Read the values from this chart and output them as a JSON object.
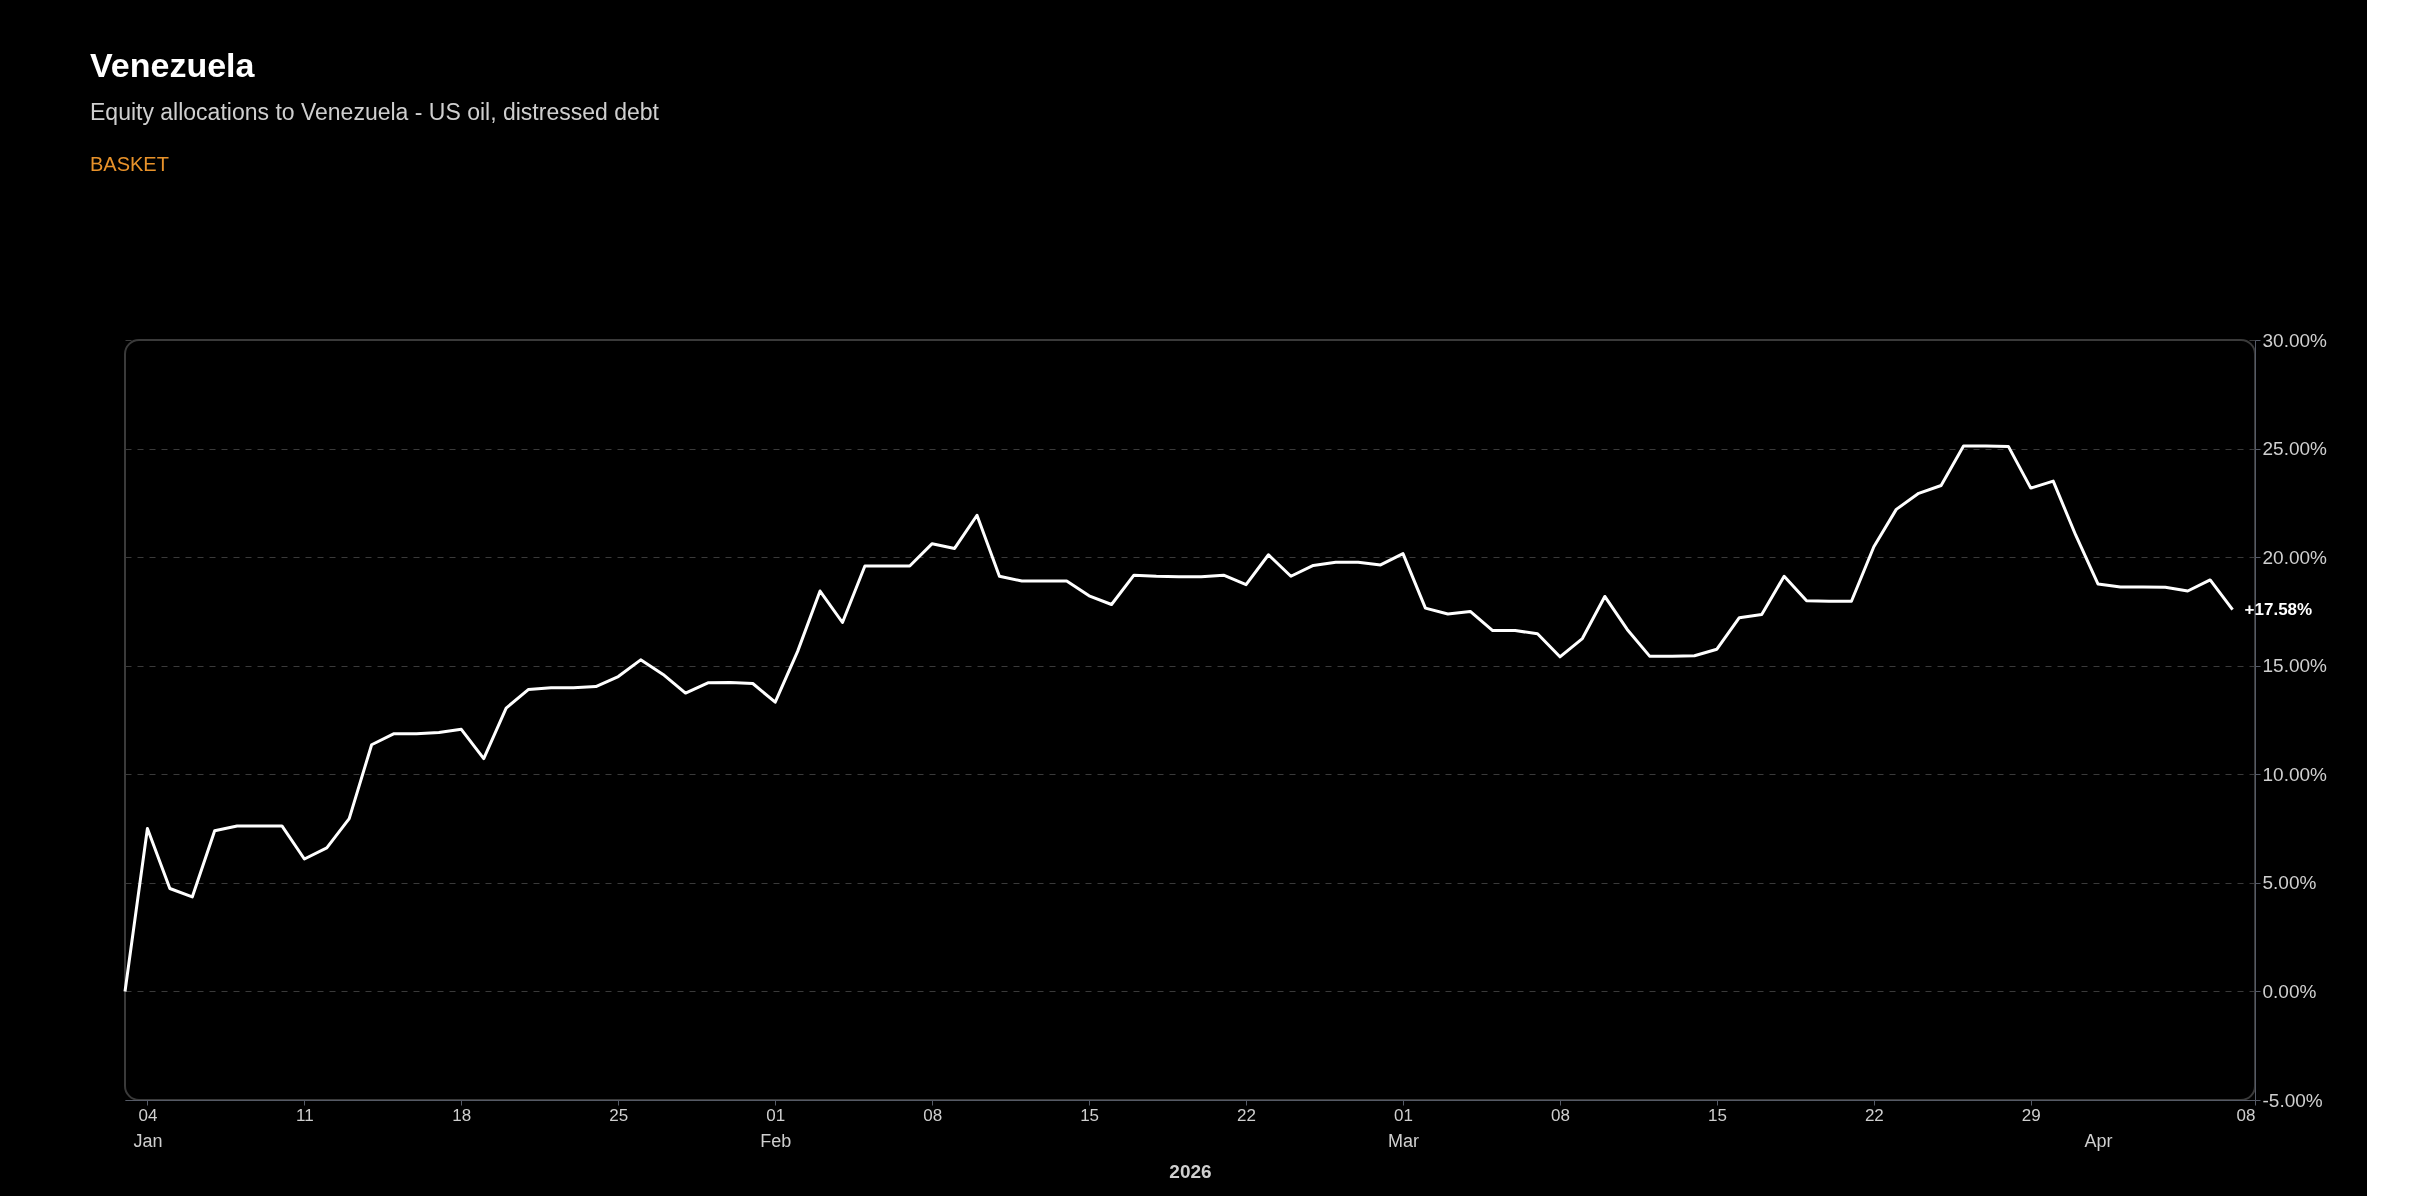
{
  "chart_data": {
    "type": "line",
    "title": "Venezuela",
    "subtitle": "Equity allocations to Venezuela - US oil, distressed debt",
    "xlabel": "2026",
    "annotations": [
      "BASKET",
      {
        "text": "+17.58%",
        "x": "2026-04-07",
        "y": 17.58
      }
    ],
    "x2lim": [
      "2026-01-03",
      "2026-04-08"
    ],
    "x2ticks": [
      {
        "value": "2026-01-04",
        "label": "Jan"
      },
      {
        "value": "2026-02-01",
        "label": "Feb"
      },
      {
        "value": "2026-03-01",
        "label": "Mar"
      },
      {
        "value": "2026-04-01",
        "label": "Apr"
      }
    ],
    "x": [
      "2026-01-03",
      "2026-01-04",
      "2026-01-05",
      "2026-01-06",
      "2026-01-07",
      "2026-01-08",
      "2026-01-09",
      "2026-01-10",
      "2026-01-11",
      "2026-01-12",
      "2026-01-13",
      "2026-01-14",
      "2026-01-15",
      "2026-01-16",
      "2026-01-17",
      "2026-01-18",
      "2026-01-19",
      "2026-01-20",
      "2026-01-21",
      "2026-01-22",
      "2026-01-23",
      "2026-01-24",
      "2026-01-25",
      "2026-01-26",
      "2026-01-27",
      "2026-01-28",
      "2026-01-29",
      "2026-01-30",
      "2026-01-31",
      "2026-02-01",
      "2026-02-02",
      "2026-02-03",
      "2026-02-04",
      "2026-02-05",
      "2026-02-06",
      "2026-02-07",
      "2026-02-08",
      "2026-02-09",
      "2026-02-10",
      "2026-02-11",
      "2026-02-12",
      "2026-02-13",
      "2026-02-14",
      "2026-02-15",
      "2026-02-16",
      "2026-02-17",
      "2026-02-18",
      "2026-02-19",
      "2026-02-20",
      "2026-02-21",
      "2026-02-22",
      "2026-02-23",
      "2026-02-24",
      "2026-02-25",
      "2026-02-26",
      "2026-02-27",
      "2026-02-28",
      "2026-03-01",
      "2026-03-02",
      "2026-03-03",
      "2026-03-04",
      "2026-03-05",
      "2026-03-06",
      "2026-03-07",
      "2026-03-08",
      "2026-03-09",
      "2026-03-10",
      "2026-03-11",
      "2026-03-12",
      "2026-03-13",
      "2026-03-14",
      "2026-03-15",
      "2026-03-16",
      "2026-03-17",
      "2026-03-18",
      "2026-03-19",
      "2026-03-20",
      "2026-03-21",
      "2026-03-22",
      "2026-03-23",
      "2026-03-24",
      "2026-03-25",
      "2026-03-26",
      "2026-03-27",
      "2026-03-28",
      "2026-03-29",
      "2026-03-30",
      "2026-03-31",
      "2026-04-01",
      "2026-04-02",
      "2026-04-03",
      "2026-04-04",
      "2026-04-05",
      "2026-04-06",
      "2026-04-07"
    ],
    "series": [
      {
        "color": "#ffffff",
        "values": [
          0,
          7.5,
          4.74,
          4.35,
          7.4,
          7.62,
          7.62,
          7.62,
          6.1,
          6.61,
          7.96,
          11.36,
          11.87,
          11.87,
          11.92,
          12.07,
          10.72,
          13.05,
          13.91,
          13.99,
          13.99,
          14.04,
          14.5,
          15.27,
          14.6,
          13.74,
          14.21,
          14.23,
          14.18,
          13.32,
          15.66,
          18.44,
          16.99,
          19.59,
          19.59,
          19.59,
          20.62,
          20.4,
          21.93,
          19.12,
          18.9,
          18.9,
          18.9,
          18.22,
          17.82,
          19.17,
          19.12,
          19.1,
          19.1,
          19.17,
          18.73,
          20.11,
          19.12,
          19.62,
          19.76,
          19.76,
          19.64,
          20.16,
          17.65,
          17.38,
          17.5,
          16.62,
          16.62,
          16.47,
          15.41,
          16.25,
          18.19,
          16.67,
          15.44,
          15.44,
          15.46,
          15.76,
          17.21,
          17.36,
          19.12,
          17.99,
          17.97,
          17.97,
          20.48,
          22.2,
          22.94,
          23.3,
          25.12,
          25.12,
          25.1,
          23.18,
          23.5,
          21.02,
          18.76,
          18.63,
          18.63,
          18.61,
          18.44,
          18.95,
          17.58
        ]
      }
    ],
    "xlim": [
      "2026-01-03",
      "2026-04-08"
    ],
    "xticks": [
      {
        "value": "2026-01-04",
        "label": "04"
      },
      {
        "value": "2026-01-11",
        "label": "11"
      },
      {
        "value": "2026-01-18",
        "label": "18"
      },
      {
        "value": "2026-01-25",
        "label": "25"
      },
      {
        "value": "2026-02-01",
        "label": "01"
      },
      {
        "value": "2026-02-08",
        "label": "08"
      },
      {
        "value": "2026-02-15",
        "label": "15"
      },
      {
        "value": "2026-02-22",
        "label": "22"
      },
      {
        "value": "2026-03-01",
        "label": "01"
      },
      {
        "value": "2026-03-08",
        "label": "08"
      },
      {
        "value": "2026-03-15",
        "label": "15"
      },
      {
        "value": "2026-03-22",
        "label": "22"
      },
      {
        "value": "2026-03-29",
        "label": "29"
      },
      {
        "value": "2026-04-08",
        "label": "08"
      }
    ],
    "ylim": [
      -5,
      30
    ],
    "yticks": [
      {
        "value": -5,
        "label": "-5.00%"
      },
      {
        "value": 0,
        "label": "0.00%"
      },
      {
        "value": 5,
        "label": "5.00%"
      },
      {
        "value": 10,
        "label": "10.00%"
      },
      {
        "value": 15,
        "label": "15.00%"
      },
      {
        "value": 20,
        "label": "20.00%"
      },
      {
        "value": 25,
        "label": "25.00%"
      },
      {
        "value": 30,
        "label": "30.00%"
      }
    ],
    "grid": "y",
    "marker": "none",
    "line_style": "solid"
  }
}
